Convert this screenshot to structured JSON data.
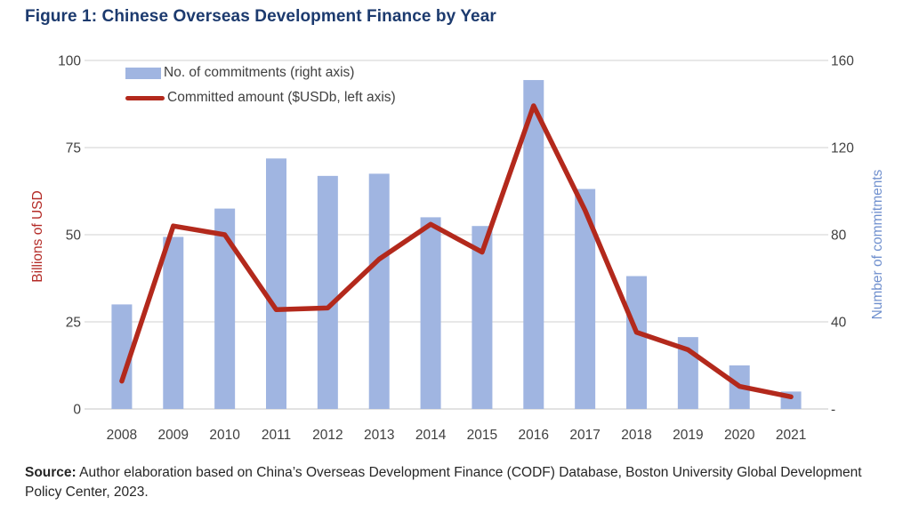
{
  "figure": {
    "title": "Figure 1: Chinese Overseas Development Finance by Year"
  },
  "legend": {
    "items": [
      {
        "label": "No. of commitments (right axis)",
        "swatch": "bar"
      },
      {
        "label": "Committed amount ($USDb, left axis)",
        "swatch": "line"
      }
    ]
  },
  "axes": {
    "left": {
      "title": "Billions of USD",
      "tick_labels": [
        "0",
        "25",
        "50",
        "75",
        "100"
      ],
      "tick_values": [
        0,
        25,
        50,
        75,
        100
      ]
    },
    "right": {
      "title": "Number of commitments",
      "tick_labels": [
        "-",
        "40",
        "80",
        "120",
        "160"
      ],
      "tick_values": [
        0,
        40,
        80,
        120,
        160
      ]
    }
  },
  "source": {
    "label": "Source:",
    "text": " Author elaboration based on China’s Overseas Development Finance (CODF) Database, Boston University Global Development Policy Center, 2023."
  },
  "colors": {
    "title": "#1c3a6e",
    "bar": "#a0b5e1",
    "line": "#b3291c",
    "left_axis_title": "#b42b27",
    "right_axis_title": "#7090ce",
    "tick_label": "#404040",
    "gridline": "#d9d9d9",
    "x_label": "#404040"
  },
  "chart_data": {
    "type": "bar+line",
    "title": "Figure 1: Chinese Overseas Development Finance by Year",
    "categories": [
      "2008",
      "2009",
      "2010",
      "2011",
      "2012",
      "2013",
      "2014",
      "2015",
      "2016",
      "2017",
      "2018",
      "2019",
      "2020",
      "2021"
    ],
    "series": [
      {
        "name": "No. of commitments (right axis)",
        "type": "bar",
        "axis": "right",
        "values": [
          48,
          79,
          92,
          115,
          107,
          108,
          88,
          84,
          151,
          101,
          61,
          33,
          20,
          8
        ]
      },
      {
        "name": "Committed amount ($USDb, left axis)",
        "type": "line",
        "axis": "left",
        "values": [
          8,
          52.5,
          50,
          28.5,
          29,
          43,
          53,
          45,
          87,
          57,
          22,
          17,
          6.5,
          3.5
        ]
      }
    ],
    "left_ylabel": "Billions of USD",
    "right_ylabel": "Number of commitments",
    "left_ylim": [
      0,
      100
    ],
    "right_ylim": [
      0,
      160
    ],
    "grid": true,
    "legend_position": "top-left"
  }
}
